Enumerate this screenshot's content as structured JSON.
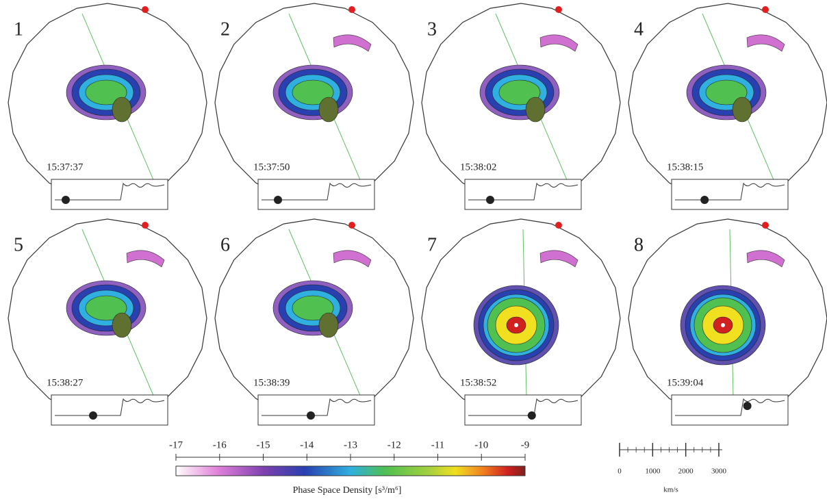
{
  "panels": [
    {
      "label": "1",
      "time": "15:37:37"
    },
    {
      "label": "2",
      "time": "15:37:50"
    },
    {
      "label": "3",
      "time": "15:38:02"
    },
    {
      "label": "4",
      "time": "15:38:15"
    },
    {
      "label": "5",
      "time": "15:38:27"
    },
    {
      "label": "6",
      "time": "15:38:39"
    },
    {
      "label": "7",
      "time": "15:38:52"
    },
    {
      "label": "8",
      "time": "15:39:04"
    }
  ],
  "colorbar": {
    "label": "Phase Space Density [s³/m⁶]",
    "lim": [
      -17,
      -9
    ],
    "ticks": [
      -17,
      -16,
      -15,
      -14,
      -13,
      -12,
      -11,
      -10,
      -9
    ]
  },
  "scale_bar": {
    "lim": [
      0,
      3000
    ],
    "ticks": [
      0,
      1000,
      2000,
      3000
    ],
    "unit": "km/s"
  }
}
